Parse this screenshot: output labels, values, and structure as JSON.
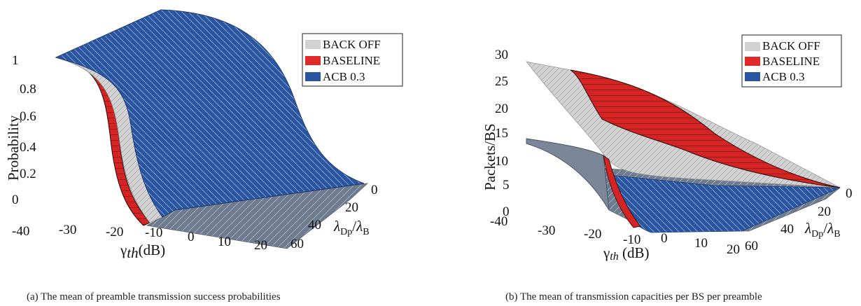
{
  "chart_data": [
    {
      "type": "surface3d",
      "caption": "(a) The mean of preamble transmission success probabilities",
      "zlabel": "Probability",
      "xlabel": "γth(dB)",
      "ylabel": "λDp/λB",
      "xlabel_main": "γ",
      "xlabel_sub": "th",
      "xlabel_unit": "(dB)",
      "ylabel_lambda": "λ",
      "ylabel_sub_dp": "Dp",
      "ylabel_slash": "/",
      "ylabel_sub_b": "B",
      "x_ticks": [
        "-40",
        "-30",
        "-20",
        "-10",
        "0",
        "10",
        "20"
      ],
      "y_ticks": [
        "0",
        "20",
        "40",
        "60"
      ],
      "z_ticks": [
        "0",
        "0.2",
        "0.4",
        "0.6",
        "0.8",
        "1"
      ],
      "xlim": [
        -40,
        20
      ],
      "ylim": [
        0,
        60
      ],
      "zlim": [
        0,
        1
      ],
      "legend_position": "top-right",
      "series": [
        {
          "name": "BACK OFF",
          "color": "#d4d4d4",
          "x": [
            -40,
            -30,
            -25,
            -20,
            -15,
            -10,
            0,
            20
          ],
          "z": [
            1.0,
            0.96,
            0.9,
            0.75,
            0.35,
            0.05,
            0.0,
            0.0
          ]
        },
        {
          "name": "BASELINE",
          "color": "#e02a2a",
          "x": [
            -40,
            -30,
            -25,
            -20,
            -15,
            -10,
            0,
            20
          ],
          "z": [
            1.0,
            0.95,
            0.88,
            0.7,
            0.3,
            0.04,
            0.0,
            0.0
          ]
        },
        {
          "name": "ACB 0.3",
          "color": "#2a55a0",
          "x": [
            -40,
            -30,
            -20,
            -10,
            0,
            10,
            20
          ],
          "z": [
            1.0,
            1.0,
            1.0,
            0.99,
            0.95,
            0.6,
            0.05
          ]
        }
      ]
    },
    {
      "type": "surface3d",
      "caption": "(b) The mean of transmission capacities per BS per preamble",
      "zlabel": "Packets/BS",
      "xlabel": "γth (dB)",
      "ylabel": "λDp/λB",
      "xlabel_main": "γ",
      "xlabel_sub": "th",
      "xlabel_unit": " (dB)",
      "ylabel_lambda": "λ",
      "ylabel_sub_dp": "Dp",
      "ylabel_slash": "/",
      "ylabel_sub_b": "B",
      "x_ticks": [
        "-40",
        "-30",
        "-20",
        "-10",
        "0",
        "10",
        "20"
      ],
      "y_ticks": [
        "0",
        "20",
        "40",
        "60"
      ],
      "z_ticks": [
        "0",
        "5",
        "10",
        "15",
        "20",
        "25",
        "30"
      ],
      "xlim": [
        -40,
        20
      ],
      "ylim": [
        0,
        60
      ],
      "zlim": [
        0,
        30
      ],
      "legend_position": "top-right",
      "series": [
        {
          "name": "BACK OFF",
          "color": "#d4d4d4",
          "x": [
            -40,
            -30,
            -20,
            -10,
            0,
            10,
            20
          ],
          "z": [
            28.5,
            27,
            24,
            17,
            9,
            4,
            2
          ]
        },
        {
          "name": "BASELINE",
          "color": "#e02a2a",
          "x": [
            -40,
            -30,
            -20,
            -10,
            0,
            10,
            20
          ],
          "z": [
            28.5,
            27.5,
            25,
            19,
            11,
            5,
            2
          ]
        },
        {
          "name": "ACB 0.3",
          "color": "#2a55a0",
          "x": [
            -40,
            -30,
            -20,
            -10,
            0,
            10,
            20
          ],
          "z": [
            14,
            12,
            8,
            3,
            1,
            0.5,
            0.2
          ]
        }
      ]
    }
  ]
}
